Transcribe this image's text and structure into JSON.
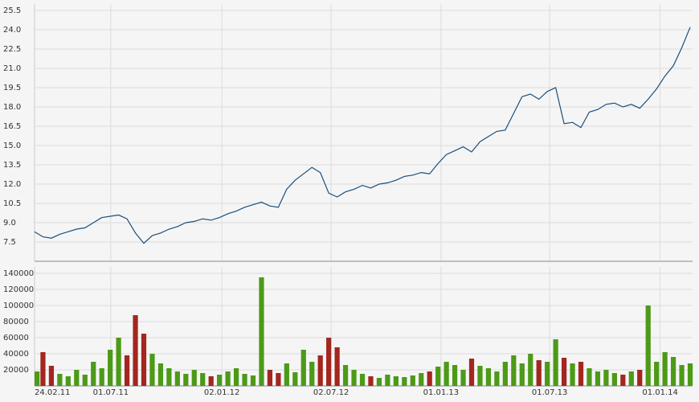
{
  "chart_data": [
    {
      "type": "line",
      "x": [
        "24.02.11",
        "10.03.11",
        "24.03.11",
        "07.04.11",
        "21.04.11",
        "05.05.11",
        "19.05.11",
        "02.06.11",
        "16.06.11",
        "30.06.11",
        "14.07.11",
        "28.07.11",
        "11.08.11",
        "25.08.11",
        "08.09.11",
        "22.09.11",
        "06.10.11",
        "20.10.11",
        "03.11.11",
        "17.11.11",
        "01.12.11",
        "15.12.11",
        "29.12.11",
        "12.01.12",
        "26.01.12",
        "09.02.12",
        "23.02.12",
        "08.03.12",
        "22.03.12",
        "05.04.12",
        "19.04.12",
        "03.05.12",
        "17.05.12",
        "31.05.12",
        "14.06.12",
        "28.06.12",
        "12.07.12",
        "26.07.12",
        "09.08.12",
        "23.08.12",
        "06.09.12",
        "20.09.12",
        "04.10.12",
        "18.10.12",
        "01.11.12",
        "15.11.12",
        "29.11.12",
        "13.12.12",
        "27.12.12",
        "10.01.13",
        "24.01.13",
        "07.02.13",
        "21.02.13",
        "07.03.13",
        "21.03.13",
        "04.04.13",
        "18.04.13",
        "02.05.13",
        "16.05.13",
        "30.05.13",
        "13.06.13",
        "27.06.13",
        "11.07.13",
        "25.07.13",
        "08.08.13",
        "22.08.13",
        "05.09.13",
        "19.09.13",
        "03.10.13",
        "17.10.13",
        "31.10.13",
        "14.11.13",
        "28.11.13",
        "12.12.13",
        "26.12.13",
        "09.01.14",
        "23.01.14",
        "06.02.14",
        "20.02.14"
      ],
      "series": [
        {
          "color": "#1b4f7c",
          "values": [
            8.3,
            7.9,
            7.8,
            8.1,
            8.3,
            8.5,
            8.6,
            9.0,
            9.4,
            9.5,
            9.6,
            9.3,
            8.2,
            7.4,
            8.0,
            8.2,
            8.5,
            8.7,
            9.0,
            9.1,
            9.3,
            9.2,
            9.4,
            9.7,
            9.9,
            10.2,
            10.4,
            10.6,
            10.3,
            10.2,
            11.6,
            12.3,
            12.8,
            13.3,
            12.9,
            11.3,
            11.0,
            11.4,
            11.6,
            11.9,
            11.7,
            12.0,
            12.1,
            12.3,
            12.6,
            12.7,
            12.9,
            12.8,
            13.6,
            14.3,
            14.6,
            14.9,
            14.5,
            15.3,
            15.7,
            16.1,
            16.2,
            17.5,
            18.8,
            19.0,
            18.6,
            19.2,
            19.5,
            16.7,
            16.8,
            16.4,
            17.6,
            17.8,
            18.2,
            18.3,
            18.0,
            18.2,
            17.9,
            18.6,
            19.4,
            20.4,
            21.2,
            22.6,
            24.2
          ]
        }
      ],
      "xlim": [
        "24.02.11",
        "24.02.14"
      ],
      "ylim": [
        6,
        26
      ],
      "yticks": [
        7.5,
        {
          "value": 9,
          "label": "9.0"
        },
        10.5,
        {
          "value": 12,
          "label": "12.0"
        },
        13.5,
        {
          "value": 15,
          "label": "15.0"
        },
        16.5,
        {
          "value": 18,
          "label": "18.0"
        },
        19.5,
        {
          "value": 21,
          "label": "21.0"
        },
        22.5,
        {
          "value": 24,
          "label": "24.0"
        },
        25.5
      ],
      "grid": true
    },
    {
      "type": "bar",
      "x": [
        "24.02.11",
        "10.03.11",
        "24.03.11",
        "07.04.11",
        "21.04.11",
        "05.05.11",
        "19.05.11",
        "02.06.11",
        "16.06.11",
        "30.06.11",
        "14.07.11",
        "28.07.11",
        "11.08.11",
        "25.08.11",
        "08.09.11",
        "22.09.11",
        "06.10.11",
        "20.10.11",
        "03.11.11",
        "17.11.11",
        "01.12.11",
        "15.12.11",
        "29.12.11",
        "12.01.12",
        "26.01.12",
        "09.02.12",
        "23.02.12",
        "08.03.12",
        "22.03.12",
        "05.04.12",
        "19.04.12",
        "03.05.12",
        "17.05.12",
        "31.05.12",
        "14.06.12",
        "28.06.12",
        "12.07.12",
        "26.07.12",
        "09.08.12",
        "23.08.12",
        "06.09.12",
        "20.09.12",
        "04.10.12",
        "18.10.12",
        "01.11.12",
        "15.11.12",
        "29.11.12",
        "13.12.12",
        "27.12.12",
        "10.01.13",
        "24.01.13",
        "07.02.13",
        "21.02.13",
        "07.03.13",
        "21.03.13",
        "04.04.13",
        "18.04.13",
        "02.05.13",
        "16.05.13",
        "30.05.13",
        "13.06.13",
        "27.06.13",
        "11.07.13",
        "25.07.13",
        "08.08.13",
        "22.08.13",
        "05.09.13",
        "19.09.13",
        "03.10.13",
        "17.10.13",
        "31.10.13",
        "14.11.13",
        "28.11.13",
        "12.12.13",
        "26.12.13",
        "09.01.14",
        "23.01.14",
        "06.02.14",
        "20.02.14"
      ],
      "values": [
        18000,
        42000,
        25000,
        15000,
        12000,
        20000,
        14000,
        30000,
        22000,
        45000,
        60000,
        38000,
        88000,
        65000,
        40000,
        28000,
        22000,
        18000,
        15000,
        20000,
        16000,
        12000,
        14000,
        18000,
        22000,
        15000,
        13000,
        135000,
        20000,
        16000,
        28000,
        17000,
        45000,
        30000,
        38000,
        60000,
        48000,
        26000,
        20000,
        15000,
        12000,
        10000,
        14000,
        12000,
        11000,
        13000,
        16000,
        18000,
        24000,
        30000,
        26000,
        20000,
        34000,
        25000,
        22000,
        18000,
        30000,
        38000,
        28000,
        40000,
        32000,
        30000,
        58000,
        35000,
        28000,
        30000,
        22000,
        18000,
        20000,
        16000,
        14000,
        18000,
        20000,
        100000,
        30000,
        42000,
        36000,
        26000,
        28000
      ],
      "up_color": "#4c9a18",
      "down_color": "#a3261f",
      "xlim": [
        "24.02.11",
        "24.02.14"
      ],
      "xticks": [
        "24.02.11",
        "01.07.11",
        "02.01.12",
        "02.07.12",
        "01.01.13",
        "01.07.13",
        "01.01.14"
      ],
      "ylim": [
        0,
        148000
      ],
      "yticks": [
        20000,
        40000,
        60000,
        80000,
        100000,
        120000,
        140000
      ],
      "grid": true
    }
  ]
}
